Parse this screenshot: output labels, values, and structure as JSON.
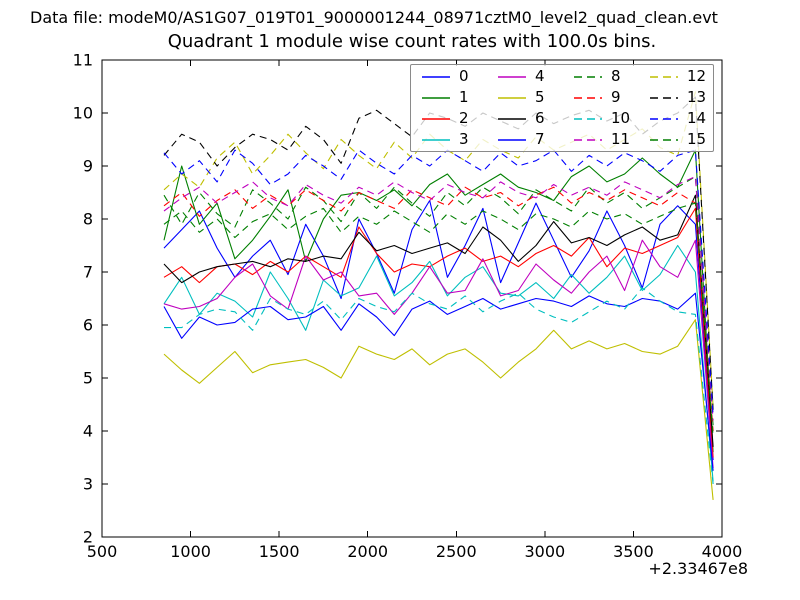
{
  "figure": {
    "data_file_label": "Data file: modeM0/AS1G07_019T01_9000001244_08971cztM0_level2_quad_clean.evt",
    "title": "Quadrant 1 module wise count rates with 100.0s bins."
  },
  "chart_data": {
    "type": "line",
    "title": "Quadrant 1 module wise count rates with 100.0s bins.",
    "xlabel": "",
    "ylabel": "",
    "xlim": [
      500,
      4000
    ],
    "ylim": [
      2,
      11
    ],
    "xticks": [
      500,
      1000,
      1500,
      2000,
      2500,
      3000,
      3500,
      4000
    ],
    "yticks": [
      2,
      3,
      4,
      5,
      6,
      7,
      8,
      9,
      10,
      11
    ],
    "x_offset_label": "+2.33467e8",
    "grid": false,
    "legend_position": "upper center",
    "legend_columns": 4,
    "axis_color": "#000000",
    "x": [
      850,
      950,
      1050,
      1150,
      1250,
      1350,
      1450,
      1550,
      1650,
      1750,
      1850,
      1950,
      2050,
      2150,
      2250,
      2350,
      2450,
      2550,
      2650,
      2750,
      2850,
      2950,
      3050,
      3150,
      3250,
      3350,
      3450,
      3550,
      3650,
      3750,
      3850,
      3950
    ],
    "series": [
      {
        "name": "0",
        "color": "#0000ff",
        "linestyle": "solid",
        "values": [
          7.45,
          7.8,
          8.15,
          7.45,
          6.9,
          7.3,
          7.6,
          6.95,
          7.9,
          7.3,
          6.5,
          8.0,
          7.35,
          6.6,
          7.8,
          8.35,
          6.9,
          7.5,
          8.2,
          6.8,
          7.55,
          8.3,
          7.6,
          6.9,
          7.4,
          8.15,
          7.5,
          6.7,
          7.9,
          8.25,
          7.9,
          3.45
        ]
      },
      {
        "name": "1",
        "color": "#007f00",
        "linestyle": "solid",
        "values": [
          7.6,
          9.0,
          7.9,
          8.3,
          7.25,
          7.6,
          8.05,
          8.55,
          7.2,
          8.0,
          8.45,
          8.5,
          8.35,
          8.55,
          8.25,
          8.65,
          8.85,
          8.45,
          8.65,
          8.85,
          8.6,
          8.5,
          8.35,
          8.8,
          9.0,
          8.7,
          8.85,
          9.15,
          8.85,
          8.6,
          9.3,
          3.6
        ]
      },
      {
        "name": "2",
        "color": "#ff0000",
        "linestyle": "solid",
        "values": [
          6.9,
          7.1,
          6.8,
          7.1,
          7.15,
          6.95,
          7.2,
          7.0,
          7.3,
          7.1,
          6.9,
          7.85,
          7.35,
          7.0,
          7.15,
          7.1,
          7.3,
          7.45,
          7.2,
          7.3,
          7.1,
          7.35,
          7.5,
          7.3,
          7.65,
          7.1,
          7.45,
          7.35,
          7.5,
          7.65,
          8.2,
          3.5
        ]
      },
      {
        "name": "3",
        "color": "#00bfbf",
        "linestyle": "solid",
        "values": [
          6.4,
          6.9,
          6.2,
          6.6,
          6.45,
          6.15,
          7.0,
          6.5,
          5.9,
          6.85,
          6.55,
          6.7,
          7.3,
          6.55,
          6.8,
          7.2,
          6.55,
          6.9,
          7.1,
          6.6,
          6.55,
          6.8,
          6.5,
          6.95,
          6.6,
          6.9,
          7.3,
          6.65,
          6.95,
          7.5,
          7.0,
          3.05
        ]
      },
      {
        "name": "4",
        "color": "#bf00bf",
        "linestyle": "solid",
        "values": [
          6.4,
          6.3,
          6.35,
          6.5,
          6.9,
          7.15,
          6.55,
          6.3,
          7.3,
          6.85,
          7.0,
          6.55,
          6.6,
          6.2,
          6.6,
          7.1,
          6.6,
          6.65,
          7.25,
          6.55,
          6.65,
          7.15,
          6.85,
          6.6,
          7.0,
          7.3,
          6.65,
          7.6,
          7.1,
          6.9,
          7.6,
          3.3
        ]
      },
      {
        "name": "5",
        "color": "#bfbf00",
        "linestyle": "solid",
        "values": [
          5.45,
          5.15,
          4.9,
          5.2,
          5.5,
          5.1,
          5.25,
          5.3,
          5.35,
          5.2,
          5.0,
          5.6,
          5.45,
          5.35,
          5.55,
          5.25,
          5.45,
          5.55,
          5.3,
          5.0,
          5.3,
          5.55,
          5.9,
          5.55,
          5.7,
          5.55,
          5.65,
          5.5,
          5.45,
          5.6,
          6.1,
          2.7
        ]
      },
      {
        "name": "6",
        "color": "#000000",
        "linestyle": "solid",
        "values": [
          7.15,
          6.8,
          7.0,
          7.1,
          7.15,
          7.2,
          7.1,
          7.25,
          7.2,
          7.3,
          7.25,
          7.75,
          7.4,
          7.5,
          7.35,
          7.45,
          7.55,
          7.35,
          7.85,
          7.6,
          7.2,
          7.5,
          7.95,
          7.55,
          7.65,
          7.5,
          7.7,
          7.85,
          7.6,
          7.7,
          8.45,
          3.7
        ]
      },
      {
        "name": "7",
        "color": "#0000ff",
        "linestyle": "solid",
        "values": [
          6.35,
          5.75,
          6.15,
          6.0,
          6.05,
          6.3,
          6.35,
          6.1,
          6.15,
          6.35,
          5.9,
          6.4,
          6.15,
          5.8,
          6.3,
          6.45,
          6.2,
          6.35,
          6.5,
          6.3,
          6.4,
          6.5,
          6.45,
          6.35,
          6.55,
          6.4,
          6.35,
          6.5,
          6.45,
          6.3,
          6.6,
          3.25
        ]
      },
      {
        "name": "8",
        "color": "#007f00",
        "linestyle": "dashed",
        "values": [
          8.45,
          7.9,
          8.5,
          8.1,
          7.85,
          8.55,
          8.3,
          8.0,
          8.6,
          8.35,
          7.95,
          8.5,
          8.2,
          8.6,
          8.3,
          8.05,
          8.5,
          8.25,
          8.6,
          8.4,
          8.1,
          8.55,
          8.35,
          8.15,
          8.6,
          8.3,
          8.5,
          8.2,
          8.4,
          8.6,
          8.8,
          4.1
        ]
      },
      {
        "name": "9",
        "color": "#ff0000",
        "linestyle": "dashed",
        "values": [
          8.25,
          8.5,
          8.05,
          8.35,
          8.55,
          8.2,
          8.45,
          8.25,
          8.55,
          8.35,
          8.15,
          8.5,
          8.35,
          8.2,
          8.55,
          8.4,
          8.25,
          8.6,
          8.4,
          8.5,
          8.25,
          8.45,
          8.6,
          8.3,
          8.5,
          8.35,
          8.55,
          8.4,
          8.25,
          8.5,
          8.3,
          4.0
        ]
      },
      {
        "name": "10",
        "color": "#00bfbf",
        "linestyle": "dashed",
        "values": [
          5.95,
          5.95,
          6.2,
          6.3,
          6.25,
          5.9,
          6.5,
          6.3,
          6.2,
          6.45,
          6.1,
          6.5,
          6.35,
          6.25,
          6.6,
          6.4,
          6.3,
          6.55,
          6.25,
          6.45,
          6.6,
          6.3,
          6.15,
          6.05,
          6.25,
          6.45,
          6.3,
          6.7,
          6.45,
          6.25,
          6.2,
          3.0
        ]
      },
      {
        "name": "11",
        "color": "#bf00bf",
        "linestyle": "dashed",
        "values": [
          8.15,
          8.4,
          8.6,
          8.3,
          8.5,
          8.7,
          8.4,
          8.25,
          8.65,
          8.45,
          8.3,
          8.6,
          8.45,
          8.7,
          8.5,
          8.35,
          8.65,
          8.5,
          8.4,
          8.7,
          8.5,
          8.4,
          8.65,
          8.45,
          8.6,
          8.45,
          8.7,
          8.55,
          8.4,
          8.65,
          8.8,
          4.2
        ]
      },
      {
        "name": "12",
        "color": "#bfbf00",
        "linestyle": "dashed",
        "values": [
          8.55,
          8.85,
          8.6,
          9.15,
          9.45,
          8.85,
          9.2,
          9.6,
          9.25,
          8.95,
          9.5,
          9.2,
          8.95,
          9.45,
          9.15,
          9.6,
          9.3,
          9.1,
          9.5,
          9.3,
          9.15,
          9.55,
          9.3,
          9.45,
          9.6,
          9.3,
          9.5,
          9.7,
          9.35,
          9.2,
          10.4,
          4.45
        ]
      },
      {
        "name": "13",
        "color": "#000000",
        "linestyle": "dashed",
        "values": [
          9.2,
          9.6,
          9.45,
          9.0,
          9.35,
          9.6,
          9.5,
          9.3,
          9.75,
          9.5,
          9.05,
          9.9,
          10.05,
          9.8,
          9.55,
          10.0,
          9.9,
          9.75,
          10.0,
          9.85,
          9.7,
          10.0,
          9.8,
          9.95,
          10.05,
          9.85,
          10.0,
          9.6,
          9.85,
          10.0,
          10.3,
          4.4
        ]
      },
      {
        "name": "14",
        "color": "#0000ff",
        "linestyle": "dashed",
        "values": [
          9.25,
          8.85,
          9.1,
          8.7,
          9.3,
          9.05,
          8.65,
          8.85,
          9.2,
          9.0,
          8.75,
          9.3,
          9.05,
          8.85,
          9.2,
          9.0,
          9.3,
          9.1,
          8.9,
          9.25,
          9.0,
          9.1,
          9.3,
          8.9,
          9.2,
          9.0,
          9.25,
          9.1,
          8.9,
          9.2,
          9.3,
          4.3
        ]
      },
      {
        "name": "15",
        "color": "#007f00",
        "linestyle": "dashed",
        "values": [
          7.9,
          8.15,
          7.75,
          8.0,
          7.65,
          7.95,
          8.1,
          7.8,
          8.05,
          8.2,
          7.75,
          8.05,
          7.9,
          8.15,
          7.95,
          7.75,
          8.1,
          7.9,
          8.15,
          8.0,
          7.8,
          8.1,
          8.0,
          7.85,
          8.15,
          8.0,
          8.1,
          7.9,
          8.05,
          8.2,
          8.3,
          3.9
        ]
      }
    ]
  }
}
